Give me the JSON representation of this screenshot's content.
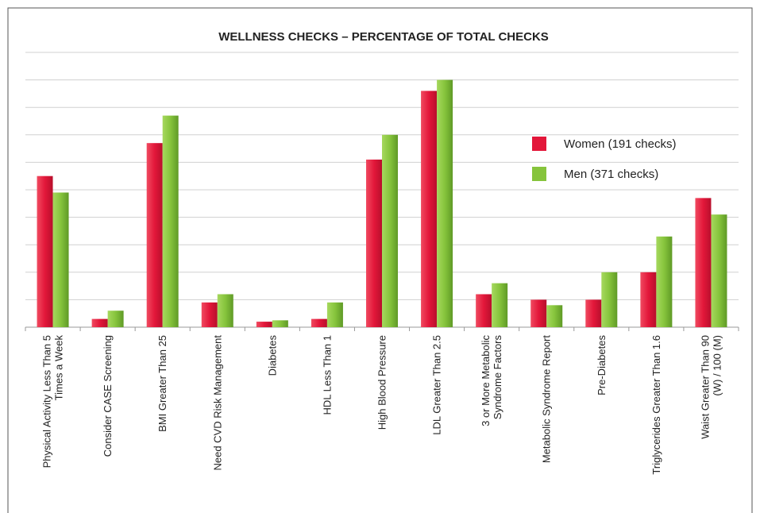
{
  "chart_data": {
    "type": "bar",
    "title": "WELLNESS CHECKS – PERCENTAGE OF TOTAL CHECKS",
    "categories": [
      [
        "Physical Activity Less Than 5",
        "Times a Week"
      ],
      [
        "Consider CASE Screening"
      ],
      [
        "BMI Greater Than 25"
      ],
      [
        "Need CVD Risk Management"
      ],
      [
        "Diabetes"
      ],
      [
        "HDL Less Than 1"
      ],
      [
        "High Blood Pressure"
      ],
      [
        "LDL Greater Than 2.5"
      ],
      [
        "3 or More Metabolic",
        "Syndrome Factors"
      ],
      [
        "Metabolic Syndrome Report"
      ],
      [
        "Pre-Diabetes"
      ],
      [
        "Triglycerides Greater Than 1.6"
      ],
      [
        "Waist Greater Than 90",
        "(W) / 100 (M)"
      ]
    ],
    "series": [
      {
        "name": "Women (191 checks)",
        "color": "#e3173a",
        "values": [
          5.5,
          0.3,
          6.7,
          0.9,
          0.2,
          0.3,
          6.1,
          8.6,
          1.2,
          1.0,
          1.0,
          2.0,
          4.7
        ]
      },
      {
        "name": "Men (371 checks)",
        "color": "#86c43c",
        "values": [
          4.9,
          0.6,
          7.7,
          1.2,
          0.25,
          0.9,
          7.0,
          9.0,
          1.6,
          0.8,
          2.0,
          3.3,
          4.1
        ]
      }
    ],
    "ylim": [
      0,
      10
    ],
    "yticks": [
      0,
      1,
      2,
      3,
      4,
      5,
      6,
      7,
      8,
      9,
      10
    ],
    "grid": true,
    "legend": "right"
  }
}
